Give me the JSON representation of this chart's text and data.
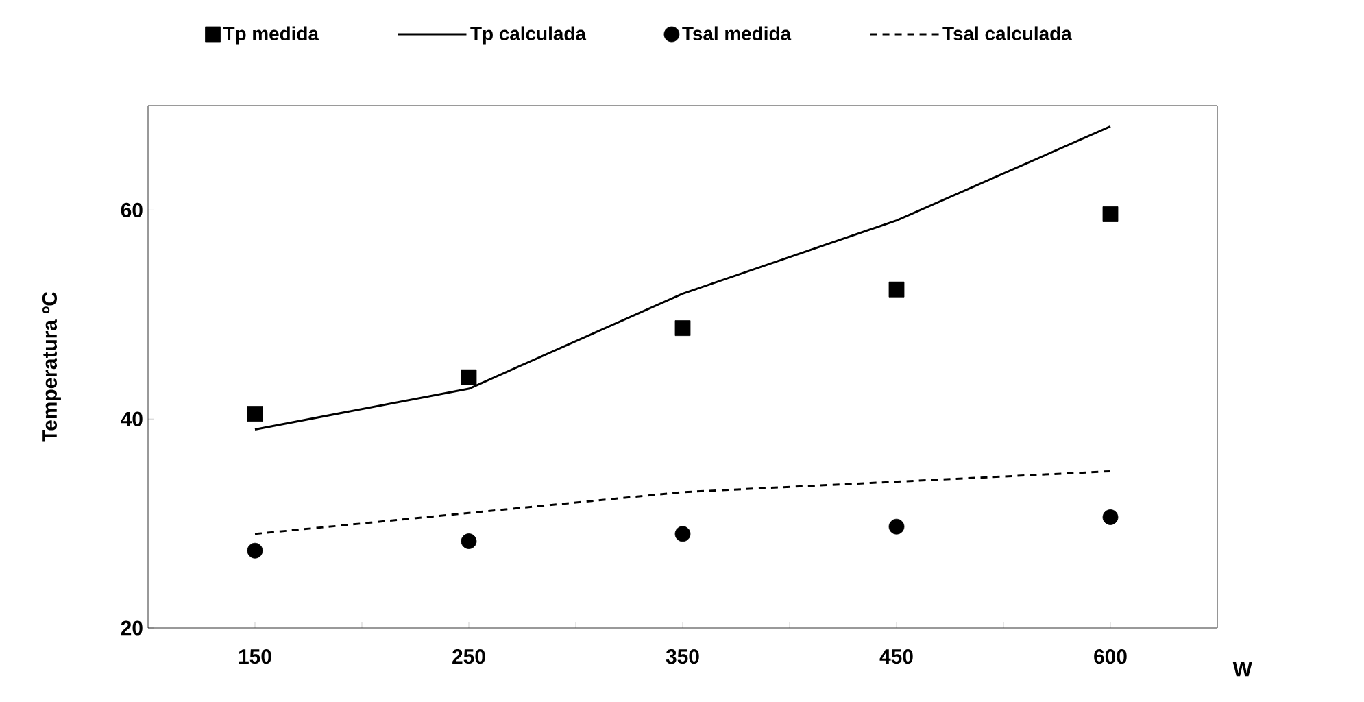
{
  "chart_data": {
    "type": "line",
    "xlabel": "W",
    "ylabel": "Temperatura ºC",
    "categories": [
      "150",
      "250",
      "350",
      "450",
      "600"
    ],
    "ylim": [
      20,
      70
    ],
    "yticks": [
      20,
      40,
      60
    ],
    "grid": false,
    "legend": "top",
    "series": [
      {
        "name": "Tp medida",
        "type": "scatter",
        "marker": "square",
        "color": "#000000",
        "values": [
          40.5,
          44.0,
          48.7,
          52.4,
          59.6
        ]
      },
      {
        "name": "Tp calculada",
        "line_style": "solid",
        "color": "#000000",
        "values": [
          39,
          42.9,
          52,
          59,
          68
        ]
      },
      {
        "name": "Tsal medida",
        "type": "scatter",
        "marker": "circle",
        "color": "#000000",
        "values": [
          27.4,
          28.3,
          29.0,
          29.7,
          30.6
        ]
      },
      {
        "name": "Tsal calculada",
        "line_style": "dashed",
        "color": "#000000",
        "values": [
          29,
          31,
          33,
          34,
          35
        ]
      }
    ]
  }
}
